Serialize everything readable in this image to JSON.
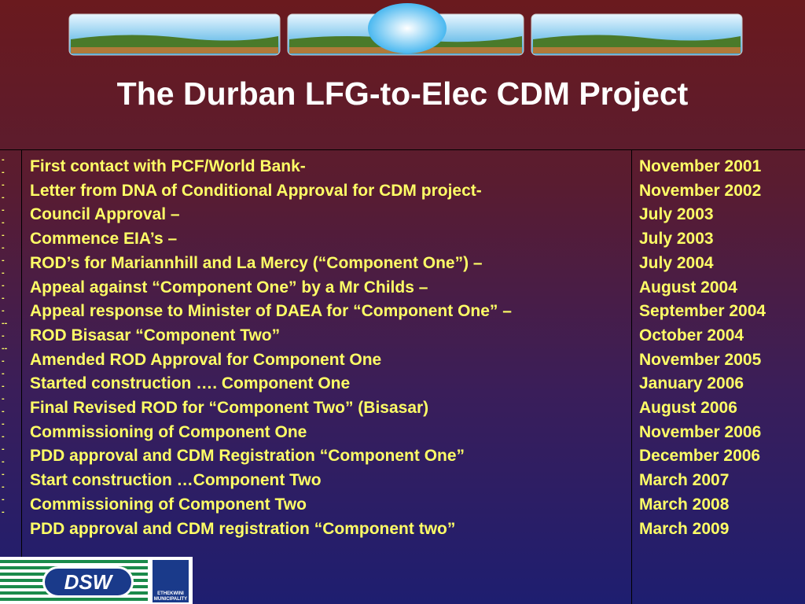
{
  "title": "The Durban LFG-to-Elec CDM Project",
  "table": {
    "rows": [
      [
        "First contact with PCF/World Bank-",
        "November 2001"
      ],
      [
        "Letter from DNA of Conditional Approval for CDM project-",
        "November 2002"
      ],
      [
        "Council Approval –",
        "July 2003"
      ],
      [
        "Commence EIA’s –",
        "July 2003"
      ],
      [
        "ROD’s for Mariannhill and La Mercy (“Component One”) –",
        "July 2004"
      ],
      [
        "Appeal against “Component One” by a Mr Childs –",
        "August 2004"
      ],
      [
        "Appeal response to Minister of DAEA for “Component One” –",
        "September 2004"
      ],
      [
        "ROD Bisasar “Component Two”",
        "October 2004"
      ],
      [
        "Amended ROD Approval for Component One",
        "November 2005"
      ],
      [
        "Started construction …. Component One",
        "January 2006"
      ],
      [
        "Final Revised ROD for “Component Two” (Bisasar)",
        "August 2006"
      ],
      [
        "Commissioning of Component One",
        "November 2006"
      ],
      [
        "PDD approval and CDM Registration “Component One”",
        "December 2006"
      ],
      [
        "Start construction …Component Two",
        "March 2007"
      ],
      [
        "Commissioning of Component Two",
        "March 2008"
      ],
      [
        "PDD approval and CDM registration “Component two”",
        "March 2009"
      ]
    ],
    "markers": [
      "-",
      "-",
      "-",
      "-",
      "-",
      "-",
      "-",
      "-",
      "-",
      "-",
      "-",
      "-",
      "-",
      "--",
      "-",
      "--",
      "-",
      "-",
      "-",
      "-",
      "-",
      "-",
      "-",
      "-",
      "-",
      "-",
      "-",
      "-",
      "-"
    ]
  },
  "logos": {
    "left": "DSW",
    "right": "ETHEKWINI MUNICIPALITY"
  }
}
